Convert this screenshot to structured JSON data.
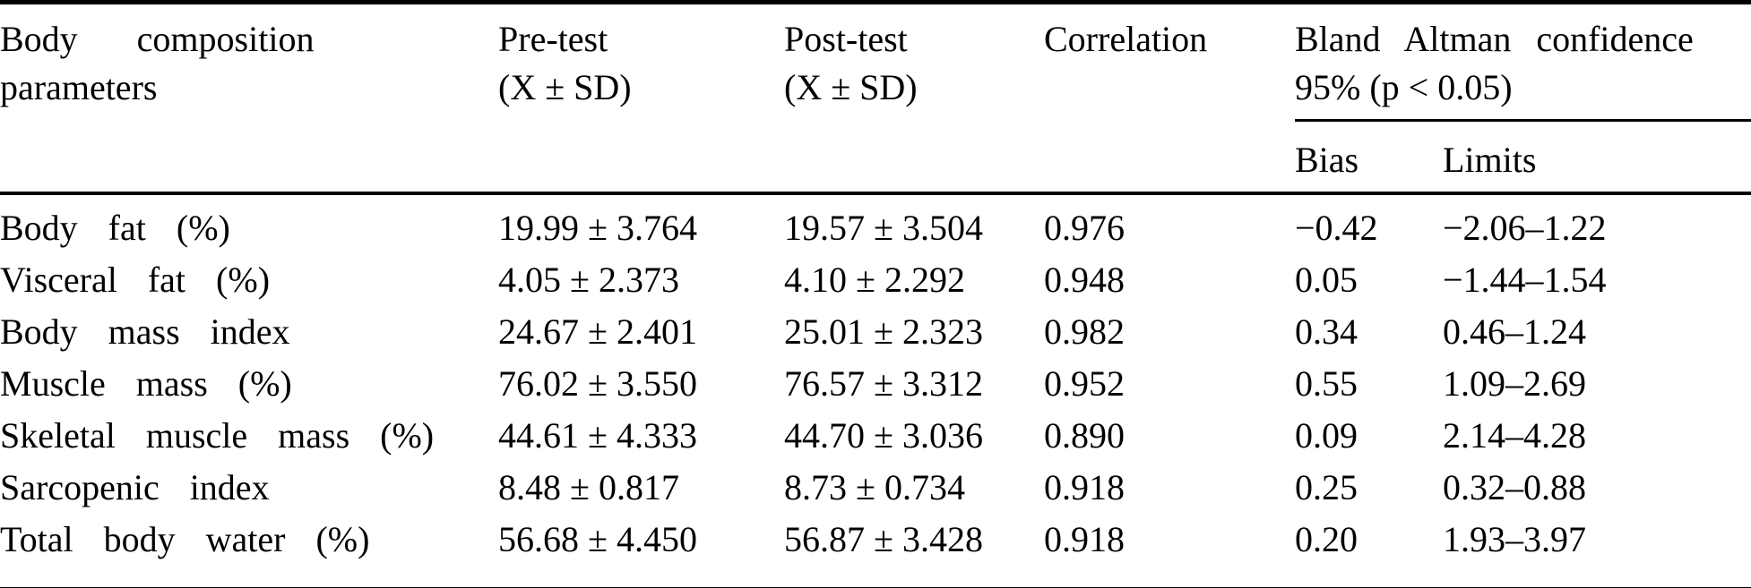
{
  "table": {
    "header": {
      "param_line1": "Body composition",
      "param_line2": "parameters",
      "pre_line1": "Pre-test",
      "pre_line2": "(X ± SD)",
      "post_line1": "Post-test",
      "post_line2": "(X ± SD)",
      "correlation": "Correlation",
      "bland_line1": "Bland Altman confidence",
      "bland_line2": "95% (p < 0.05)",
      "bias": "Bias",
      "limits": "Limits"
    },
    "rows": [
      {
        "param": "Body fat (%)",
        "pre": "19.99 ± 3.764",
        "post": "19.57 ± 3.504",
        "corr": "0.976",
        "bias": "−0.42",
        "limits": "−2.06–1.22"
      },
      {
        "param": "Visceral fat (%)",
        "pre": "4.05 ± 2.373",
        "post": "4.10 ± 2.292",
        "corr": "0.948",
        "bias": "0.05",
        "limits": "−1.44–1.54"
      },
      {
        "param": "Body mass index",
        "pre": "24.67 ± 2.401",
        "post": "25.01 ± 2.323",
        "corr": "0.982",
        "bias": "0.34",
        "limits": "0.46–1.24"
      },
      {
        "param": "Muscle mass (%)",
        "pre": "76.02 ± 3.550",
        "post": "76.57 ± 3.312",
        "corr": "0.952",
        "bias": "0.55",
        "limits": "1.09–2.69"
      },
      {
        "param": "Skeletal muscle mass (%)",
        "pre": "44.61 ± 4.333",
        "post": "44.70 ± 3.036",
        "corr": "0.890",
        "bias": "0.09",
        "limits": "2.14–4.28"
      },
      {
        "param": "Sarcopenic index",
        "pre": "8.48 ± 0.817",
        "post": "8.73 ± 0.734",
        "corr": "0.918",
        "bias": "0.25",
        "limits": "0.32–0.88"
      },
      {
        "param": "Total body water (%)",
        "pre": "56.68 ± 4.450",
        "post": "56.87 ± 3.428",
        "corr": "0.918",
        "bias": "0.20",
        "limits": "1.93–3.97"
      }
    ],
    "colors": {
      "text": "#000000",
      "background": "#ffffff",
      "rule": "#000000"
    }
  }
}
